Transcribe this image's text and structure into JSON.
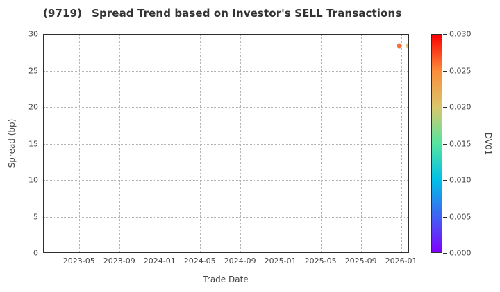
{
  "title": {
    "code": "(9719)",
    "text": "Spread Trend based on Investor's SELL Transactions"
  },
  "chart_data": {
    "type": "scatter",
    "title": "(9719)   Spread Trend based on Investor's SELL Transactions",
    "xlabel": "Trade Date",
    "ylabel": "Spread (bp)",
    "ylim": [
      0,
      30
    ],
    "xlim": [
      "2023-01-14",
      "2026-01-25"
    ],
    "grid": true,
    "grid_style": "dotted",
    "y_ticks": [
      {
        "value": 0,
        "label": "0"
      },
      {
        "value": 5,
        "label": "5"
      },
      {
        "value": 10,
        "label": "10"
      },
      {
        "value": 15,
        "label": "15"
      },
      {
        "value": 20,
        "label": "20"
      },
      {
        "value": 25,
        "label": "25"
      },
      {
        "value": 30,
        "label": "30"
      }
    ],
    "x_ticks": [
      {
        "date": "2023-05",
        "label": "2023-05"
      },
      {
        "date": "2023-09",
        "label": "2023-09"
      },
      {
        "date": "2024-01",
        "label": "2024-01"
      },
      {
        "date": "2024-05",
        "label": "2024-05"
      },
      {
        "date": "2024-09",
        "label": "2024-09"
      },
      {
        "date": "2025-01",
        "label": "2025-01"
      },
      {
        "date": "2025-05",
        "label": "2025-05"
      },
      {
        "date": "2025-09",
        "label": "2025-09"
      },
      {
        "date": "2026-01",
        "label": "2026-01"
      }
    ],
    "points": [
      {
        "date": "2025-12-26",
        "spread_bp": 28.4,
        "dv01": 0.026,
        "color": "#f7703a"
      },
      {
        "date": "2026-01-23",
        "spread_bp": 28.4,
        "dv01": 0.021,
        "color": "#e2c873"
      }
    ],
    "colorbar": {
      "label": "DV01",
      "min": 0.0,
      "max": 0.03,
      "colormap": "rainbow",
      "gradient_stops_bottom_to_top": [
        "#8000ff",
        "#3f64f2",
        "#00c0e8",
        "#55e5a0",
        "#d9c66d",
        "#fc8d3b",
        "#fb0000"
      ],
      "ticks": [
        {
          "value": 0.0,
          "label": "0.000"
        },
        {
          "value": 0.005,
          "label": "0.005"
        },
        {
          "value": 0.01,
          "label": "0.010"
        },
        {
          "value": 0.015,
          "label": "0.015"
        },
        {
          "value": 0.02,
          "label": "0.020"
        },
        {
          "value": 0.025,
          "label": "0.025"
        },
        {
          "value": 0.03,
          "label": "0.030"
        }
      ]
    }
  }
}
